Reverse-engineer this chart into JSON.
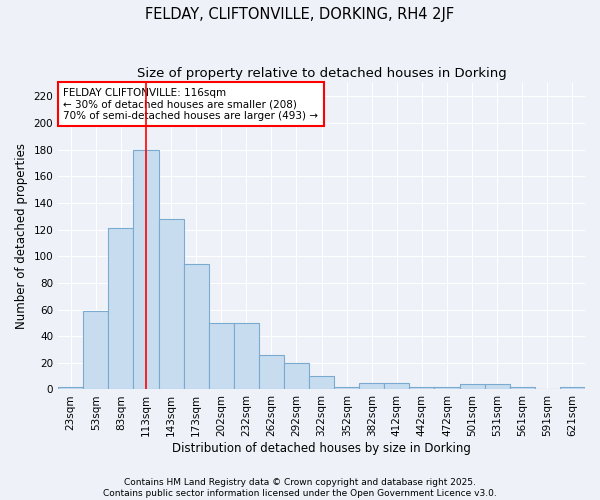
{
  "title": "FELDAY, CLIFTONVILLE, DORKING, RH4 2JF",
  "subtitle": "Size of property relative to detached houses in Dorking",
  "xlabel": "Distribution of detached houses by size in Dorking",
  "ylabel": "Number of detached properties",
  "bar_color": "#c8dcf0",
  "bar_edge_color": "#7aaad0",
  "background_color": "#eef2f8",
  "grid_color": "#ffffff",
  "categories": [
    "23sqm",
    "53sqm",
    "83sqm",
    "113sqm",
    "143sqm",
    "173sqm",
    "202sqm",
    "232sqm",
    "262sqm",
    "292sqm",
    "322sqm",
    "352sqm",
    "382sqm",
    "412sqm",
    "442sqm",
    "472sqm",
    "501sqm",
    "531sqm",
    "561sqm",
    "591sqm",
    "621sqm"
  ],
  "values": [
    2,
    59,
    121,
    180,
    128,
    94,
    50,
    50,
    26,
    20,
    10,
    2,
    5,
    5,
    2,
    2,
    4,
    4,
    2,
    0,
    2
  ],
  "ylim": [
    0,
    230
  ],
  "yticks": [
    0,
    20,
    40,
    60,
    80,
    100,
    120,
    140,
    160,
    180,
    200,
    220
  ],
  "annotation_title": "FELDAY CLIFTONVILLE: 116sqm",
  "annotation_line1": "← 30% of detached houses are smaller (208)",
  "annotation_line2": "70% of semi-detached houses are larger (493) →",
  "vline_x": 3.5,
  "footer_line1": "Contains HM Land Registry data © Crown copyright and database right 2025.",
  "footer_line2": "Contains public sector information licensed under the Open Government Licence v3.0.",
  "title_fontsize": 10.5,
  "subtitle_fontsize": 9.5,
  "axis_label_fontsize": 8.5,
  "tick_fontsize": 7.5,
  "annotation_fontsize": 7.5,
  "footer_fontsize": 6.5
}
